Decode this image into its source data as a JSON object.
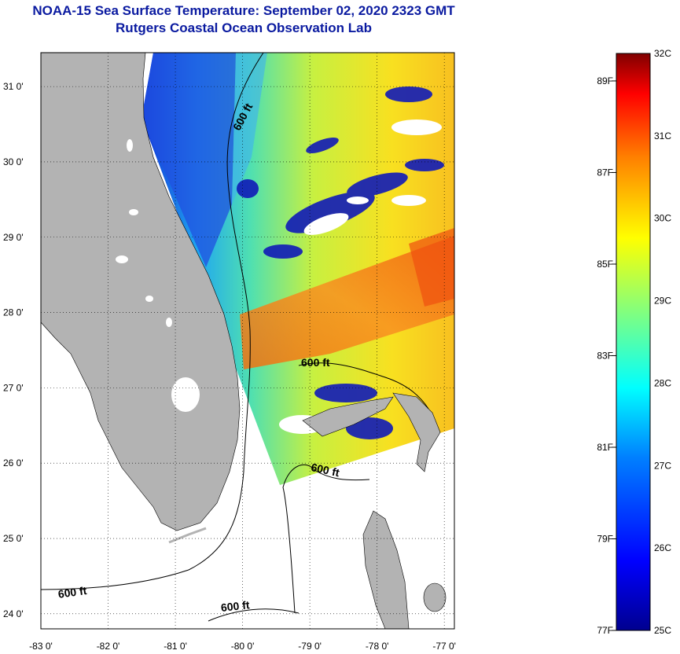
{
  "header": {
    "title": "NOAA-15 Sea Surface Temperature:  September 02, 2020 2323 GMT",
    "subtitle": "Rutgers Coastal Ocean Observation Lab"
  },
  "map": {
    "lon_range": [
      -83,
      -76.85
    ],
    "lat_range": [
      23.8,
      31.45
    ],
    "lat_ticks": [
      "31 0'",
      "30 0'",
      "29 0'",
      "28 0'",
      "27 0'",
      "26 0'",
      "25 0'",
      "24 0'"
    ],
    "lon_ticks": [
      "-83 0'",
      "-82 0'",
      "-81 0'",
      "-80 0'",
      "-79 0'",
      "-78 0'",
      "-77 0'"
    ],
    "contour_labels": [
      "600 ft",
      "600 ft",
      "600 ft",
      "600 ft",
      "600 ft"
    ],
    "colors": {
      "land": "#b3b3b3",
      "background": "#ffffff",
      "cloud": "#ffffff"
    }
  },
  "colorbar": {
    "celsius_labels": [
      "32C",
      "31C",
      "30C",
      "29C",
      "28C",
      "27C",
      "26C",
      "25C"
    ],
    "fahrenheit_labels": [
      "89F",
      "87F",
      "85F",
      "83F",
      "81F",
      "79F",
      "77F"
    ],
    "range_c": [
      25,
      32
    ],
    "colors": [
      "#00008f",
      "#0000ff",
      "#0080ff",
      "#00ffff",
      "#80ff80",
      "#ffff00",
      "#ff8000",
      "#ff0000",
      "#800000"
    ]
  }
}
